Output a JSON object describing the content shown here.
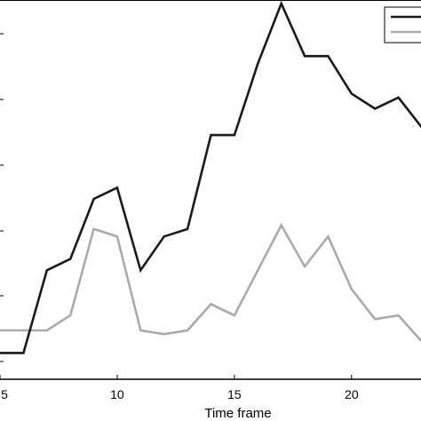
{
  "chart_data": {
    "type": "line",
    "title": "",
    "xlabel": "Time frame",
    "ylabel": "",
    "xlim": [
      5,
      23
    ],
    "ylim": [
      0,
      100
    ],
    "xticks": [
      5,
      10,
      15,
      20
    ],
    "xtick_labels": [
      "5",
      "10",
      "15",
      "20"
    ],
    "grid": false,
    "legend": "top-right",
    "x": [
      5,
      6,
      7,
      8,
      9,
      10,
      11,
      12,
      13,
      14,
      15,
      16,
      17,
      18,
      19,
      20,
      21,
      22,
      23
    ],
    "series": [
      {
        "color": "#1a1a1a",
        "values": [
          7,
          7,
          29,
          32,
          48,
          51,
          29,
          38,
          40,
          65,
          65,
          84,
          100,
          86,
          86,
          76,
          72,
          75,
          67
        ]
      },
      {
        "color": "#aaaaaa",
        "values": [
          13,
          13,
          13,
          17,
          40,
          38,
          13,
          12,
          13,
          20,
          17,
          29,
          41,
          30,
          38,
          24,
          16,
          17,
          10
        ]
      }
    ]
  }
}
